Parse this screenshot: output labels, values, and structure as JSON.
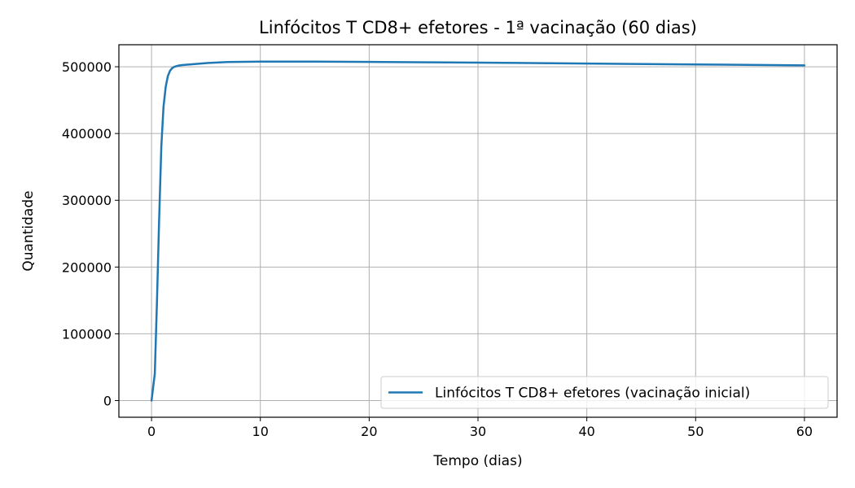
{
  "chart_data": {
    "type": "line",
    "title": "Linfócitos T CD8+ efetores - 1ª vacinação (60 dias)",
    "xlabel": "Tempo (dias)",
    "ylabel": "Quantidade",
    "xlim": [
      -3,
      63
    ],
    "ylim": [
      -25000,
      533000
    ],
    "xticks": [
      0,
      10,
      20,
      30,
      40,
      50,
      60
    ],
    "yticks": [
      0,
      100000,
      200000,
      300000,
      400000,
      500000
    ],
    "grid": true,
    "legend_position": "lower-right",
    "series": [
      {
        "name": "Linfócitos T CD8+ efetores (vacinação inicial)",
        "color": "#1f77b4",
        "x": [
          0,
          0.3,
          0.5,
          0.7,
          0.9,
          1.1,
          1.3,
          1.5,
          1.7,
          1.9,
          2.1,
          2.4,
          2.8,
          3.5,
          5,
          7,
          10,
          15,
          20,
          30,
          40,
          50,
          60
        ],
        "y": [
          0,
          40000,
          150000,
          270000,
          380000,
          440000,
          470000,
          486000,
          494000,
          498000,
          500000,
          501500,
          502500,
          503500,
          505500,
          507000,
          507800,
          507700,
          507300,
          506200,
          504800,
          503500,
          502000
        ]
      }
    ]
  }
}
